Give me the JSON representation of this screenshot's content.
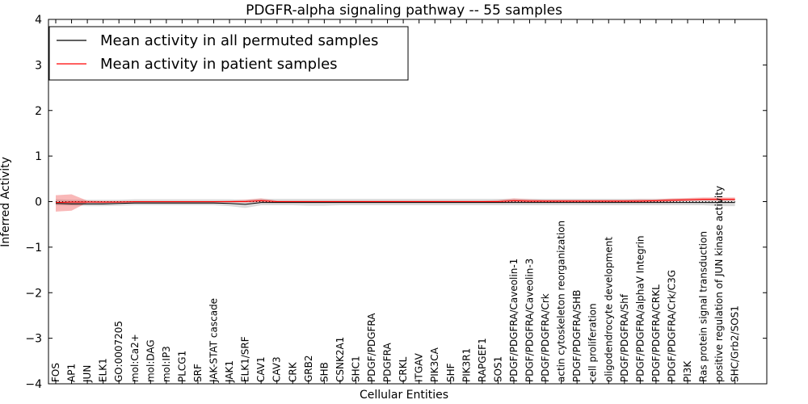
{
  "chart_data": {
    "type": "line",
    "title": "PDGFR-alpha signaling pathway -- 55 samples",
    "xlabel": "Cellular Entities",
    "ylabel": "Inferred Activity",
    "ylim": [
      -4,
      4
    ],
    "yticks": [
      -4,
      -3,
      -2,
      -1,
      0,
      1,
      2,
      3,
      4
    ],
    "ytick_labels": [
      "−4",
      "−3",
      "−2",
      "−1",
      "0",
      "1",
      "2",
      "3",
      "4"
    ],
    "legend_position": "top-left",
    "categories": [
      "FOS",
      "AP1",
      "JUN",
      "ELK1",
      "GO:0007205",
      "mol:Ca2+",
      "mol:DAG",
      "mol:IP3",
      "PLCG1",
      "SRF",
      "JAK-STAT cascade",
      "JAK1",
      "ELK1/SRF",
      "CAV1",
      "CAV3",
      "CRK",
      "GRB2",
      "SHB",
      "CSNK2A1",
      "SHC1",
      "PDGF/PDGFRA",
      "PDGFRA",
      "CRKL",
      "ITGAV",
      "PIK3CA",
      "SHF",
      "PIK3R1",
      "RAPGEF1",
      "SOS1",
      "PDGF/PDGFRA/Caveolin-1",
      "PDGF/PDGFRA/Caveolin-3",
      "PDGF/PDGFRA/Crk",
      "actin cytoskeleton reorganization",
      "PDGF/PDGFRA/SHB",
      "cell proliferation",
      "oligodendrocyte development",
      "PDGF/PDGFRA/Shf",
      "PDGF/PDGFRA/alphaV Integrin",
      "PDGF/PDGFRA/CRKL",
      "PDGF/PDGFRA/Crk/C3G",
      "PI3K",
      "Ras protein signal transduction",
      "positive regulation of JUN kinase activity",
      "SHC/Grb2/SOS1"
    ],
    "series": [
      {
        "name": "Mean activity in all permuted samples",
        "color": "#000000",
        "values": [
          -0.04,
          -0.05,
          -0.05,
          -0.05,
          -0.04,
          -0.03,
          -0.03,
          -0.03,
          -0.03,
          -0.03,
          -0.03,
          -0.04,
          -0.06,
          -0.02,
          -0.02,
          -0.02,
          -0.02,
          -0.02,
          -0.02,
          -0.02,
          -0.02,
          -0.02,
          -0.02,
          -0.02,
          -0.02,
          -0.02,
          -0.02,
          -0.02,
          -0.02,
          -0.02,
          -0.02,
          -0.02,
          -0.02,
          -0.02,
          -0.02,
          -0.02,
          -0.02,
          -0.02,
          -0.02,
          -0.02,
          -0.02,
          -0.02,
          -0.02,
          -0.02
        ],
        "lower": [
          -0.08,
          -0.09,
          -0.1,
          -0.1,
          -0.09,
          -0.08,
          -0.08,
          -0.08,
          -0.08,
          -0.08,
          -0.08,
          -0.1,
          -0.14,
          -0.08,
          -0.08,
          -0.08,
          -0.09,
          -0.09,
          -0.08,
          -0.08,
          -0.08,
          -0.08,
          -0.08,
          -0.08,
          -0.08,
          -0.08,
          -0.08,
          -0.08,
          -0.08,
          -0.08,
          -0.08,
          -0.08,
          -0.08,
          -0.08,
          -0.08,
          -0.08,
          -0.08,
          -0.08,
          -0.08,
          -0.08,
          -0.08,
          -0.08,
          -0.1,
          -0.1
        ],
        "upper": [
          0.05,
          0.04,
          0.04,
          0.04,
          0.04,
          0.05,
          0.05,
          0.05,
          0.05,
          0.05,
          0.05,
          0.05,
          0.04,
          0.06,
          0.06,
          0.06,
          0.06,
          0.06,
          0.06,
          0.06,
          0.06,
          0.06,
          0.06,
          0.06,
          0.06,
          0.06,
          0.06,
          0.06,
          0.06,
          0.06,
          0.06,
          0.06,
          0.06,
          0.06,
          0.06,
          0.06,
          0.06,
          0.06,
          0.06,
          0.06,
          0.06,
          0.06,
          0.06,
          0.06
        ]
      },
      {
        "name": "Mean activity in patient samples",
        "color": "#ff0000",
        "values": [
          -0.02,
          -0.01,
          -0.01,
          -0.01,
          -0.01,
          0.0,
          0.0,
          0.0,
          0.0,
          0.0,
          0.0,
          0.0,
          0.0,
          0.02,
          0.0,
          0.0,
          0.0,
          0.0,
          0.0,
          0.0,
          0.0,
          0.0,
          0.0,
          0.0,
          0.0,
          0.0,
          0.0,
          0.0,
          0.0,
          0.02,
          0.01,
          0.01,
          0.01,
          0.01,
          0.01,
          0.01,
          0.01,
          0.01,
          0.02,
          0.03,
          0.04,
          0.05,
          0.05,
          0.05
        ],
        "lower": [
          -0.22,
          -0.2,
          -0.02,
          -0.03,
          -0.02,
          -0.02,
          -0.02,
          -0.02,
          -0.02,
          -0.02,
          -0.02,
          -0.02,
          -0.02,
          -0.01,
          -0.02,
          -0.02,
          -0.02,
          -0.02,
          -0.02,
          -0.02,
          -0.02,
          -0.02,
          -0.02,
          -0.02,
          -0.02,
          -0.02,
          -0.02,
          -0.02,
          -0.02,
          -0.01,
          -0.01,
          -0.01,
          -0.01,
          -0.01,
          -0.01,
          -0.01,
          -0.01,
          -0.01,
          -0.01,
          0.0,
          0.01,
          0.02,
          0.02,
          0.02
        ],
        "upper": [
          0.14,
          0.16,
          0.02,
          0.01,
          0.01,
          0.01,
          0.01,
          0.01,
          0.01,
          0.01,
          0.01,
          0.02,
          0.04,
          0.07,
          0.02,
          0.02,
          0.02,
          0.02,
          0.02,
          0.02,
          0.02,
          0.02,
          0.02,
          0.02,
          0.02,
          0.02,
          0.02,
          0.02,
          0.03,
          0.07,
          0.05,
          0.04,
          0.04,
          0.04,
          0.04,
          0.04,
          0.04,
          0.05,
          0.05,
          0.07,
          0.08,
          0.09,
          0.09,
          0.09
        ]
      }
    ]
  }
}
